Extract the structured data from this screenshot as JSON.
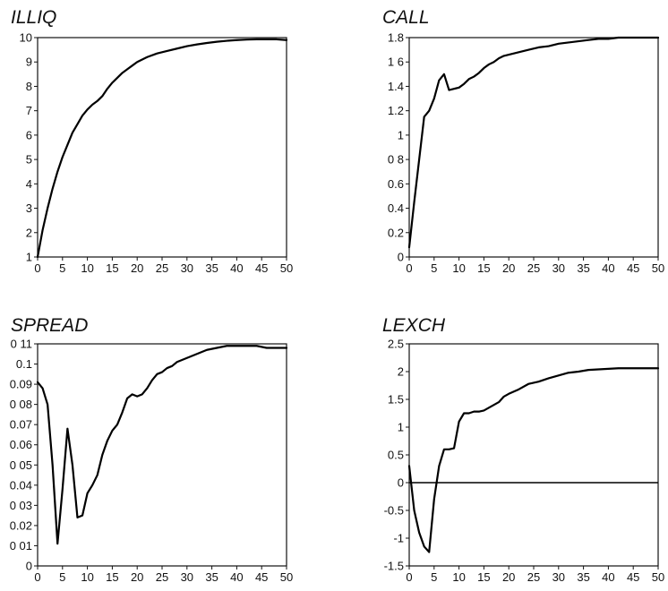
{
  "chart_data": [
    {
      "type": "line",
      "title": "ILLIQ",
      "xlabel": "",
      "ylabel": "",
      "xlim": [
        0,
        50
      ],
      "ylim": [
        1,
        10
      ],
      "x_ticks": [
        0,
        5,
        10,
        15,
        20,
        25,
        30,
        35,
        40,
        45,
        50
      ],
      "x_tick_labels": [
        "0",
        "5",
        "10",
        "15",
        "20",
        "25",
        "30",
        "35",
        "40",
        "45",
        "50"
      ],
      "y_ticks": [
        1,
        2,
        3,
        4,
        5,
        6,
        7,
        8,
        9,
        10
      ],
      "y_tick_labels": [
        "1",
        "2",
        "3",
        "4",
        "5",
        "6",
        "7",
        "8",
        "9",
        "10"
      ],
      "grid": false,
      "series": [
        {
          "x": [
            0,
            1,
            2,
            3,
            4,
            5,
            6,
            7,
            8,
            9,
            10,
            11,
            12,
            13,
            14,
            15,
            16,
            17,
            18,
            19,
            20,
            22,
            24,
            26,
            28,
            30,
            32,
            34,
            36,
            38,
            40,
            42,
            44,
            46,
            48,
            50
          ],
          "y": [
            1.0,
            2.1,
            3.0,
            3.8,
            4.5,
            5.1,
            5.6,
            6.1,
            6.45,
            6.8,
            7.05,
            7.25,
            7.4,
            7.6,
            7.9,
            8.15,
            8.35,
            8.55,
            8.7,
            8.85,
            9.0,
            9.2,
            9.35,
            9.45,
            9.55,
            9.65,
            9.72,
            9.78,
            9.83,
            9.87,
            9.9,
            9.92,
            9.93,
            9.93,
            9.93,
            9.9
          ]
        }
      ]
    },
    {
      "type": "line",
      "title": "CALL",
      "xlabel": "",
      "ylabel": "",
      "xlim": [
        0,
        50
      ],
      "ylim": [
        0,
        1.8
      ],
      "x_ticks": [
        0,
        5,
        10,
        15,
        20,
        25,
        30,
        35,
        40,
        45,
        50
      ],
      "x_tick_labels": [
        "0",
        "5",
        "10",
        "15",
        "20",
        "25",
        "30",
        "35",
        "40",
        "45",
        "50"
      ],
      "y_ticks": [
        0,
        0.2,
        0.4,
        0.6,
        0.8,
        1.0,
        1.2,
        1.4,
        1.6,
        1.8
      ],
      "y_tick_labels": [
        "0",
        "0.2",
        "0.4",
        "0.6",
        "0 8",
        "1",
        "1.2",
        "1.4",
        "1 6",
        "1.8"
      ],
      "grid": false,
      "series": [
        {
          "x": [
            0,
            1,
            2,
            3,
            4,
            5,
            6,
            7,
            8,
            9,
            10,
            11,
            12,
            13,
            14,
            15,
            16,
            17,
            18,
            19,
            20,
            22,
            24,
            26,
            28,
            30,
            32,
            34,
            36,
            38,
            40,
            42,
            44,
            46,
            48,
            50
          ],
          "y": [
            0.08,
            0.45,
            0.8,
            1.15,
            1.2,
            1.3,
            1.45,
            1.5,
            1.37,
            1.38,
            1.39,
            1.42,
            1.46,
            1.48,
            1.51,
            1.55,
            1.58,
            1.6,
            1.63,
            1.65,
            1.66,
            1.68,
            1.7,
            1.72,
            1.73,
            1.75,
            1.76,
            1.77,
            1.78,
            1.79,
            1.79,
            1.8,
            1.8,
            1.8,
            1.8,
            1.8
          ]
        }
      ]
    },
    {
      "type": "line",
      "title": "SPREAD",
      "xlabel": "",
      "ylabel": "",
      "xlim": [
        0,
        50
      ],
      "ylim": [
        0,
        0.11
      ],
      "x_ticks": [
        0,
        5,
        10,
        15,
        20,
        25,
        30,
        35,
        40,
        45,
        50
      ],
      "x_tick_labels": [
        "0",
        "5",
        "10",
        "15",
        "20",
        "25",
        "30",
        "35",
        "40",
        "45",
        "50"
      ],
      "y_ticks": [
        0,
        0.01,
        0.02,
        0.03,
        0.04,
        0.05,
        0.06,
        0.07,
        0.08,
        0.09,
        0.1,
        0.11
      ],
      "y_tick_labels": [
        "0",
        "0 01",
        "0.02",
        "0 03",
        "0.04",
        "0 05",
        "0.06",
        "0.07",
        "0 08",
        "0.09",
        "0.1",
        "0 11"
      ],
      "grid": false,
      "series": [
        {
          "x": [
            0,
            1,
            2,
            3,
            4,
            5,
            6,
            7,
            8,
            9,
            10,
            11,
            12,
            13,
            14,
            15,
            16,
            17,
            18,
            19,
            20,
            21,
            22,
            23,
            24,
            25,
            26,
            27,
            28,
            30,
            32,
            34,
            36,
            38,
            40,
            42,
            44,
            46,
            48,
            50
          ],
          "y": [
            0.091,
            0.088,
            0.08,
            0.05,
            0.011,
            0.038,
            0.068,
            0.05,
            0.024,
            0.025,
            0.036,
            0.04,
            0.045,
            0.055,
            0.062,
            0.067,
            0.07,
            0.076,
            0.083,
            0.085,
            0.084,
            0.085,
            0.088,
            0.092,
            0.095,
            0.096,
            0.098,
            0.099,
            0.101,
            0.103,
            0.105,
            0.107,
            0.108,
            0.109,
            0.109,
            0.109,
            0.109,
            0.108,
            0.108,
            0.108
          ]
        }
      ]
    },
    {
      "type": "line",
      "title": "LEXCH",
      "xlabel": "",
      "ylabel": "",
      "xlim": [
        0,
        50
      ],
      "ylim": [
        -1.5,
        2.5
      ],
      "x_ticks": [
        0,
        5,
        10,
        15,
        20,
        25,
        30,
        35,
        40,
        45,
        50
      ],
      "x_tick_labels": [
        "0",
        "5",
        "10",
        "15",
        "20",
        "25",
        "30",
        "35",
        "40",
        "45",
        "50"
      ],
      "y_ticks": [
        -1.5,
        -1,
        -0.5,
        0,
        0.5,
        1,
        1.5,
        2,
        2.5
      ],
      "y_tick_labels": [
        "-1.5",
        "-1",
        "-0.5",
        "0",
        "0.5",
        "1",
        "1.5",
        "2",
        "2.5"
      ],
      "reference_line_y": 0,
      "grid": false,
      "series": [
        {
          "x": [
            0,
            1,
            2,
            3,
            4,
            5,
            6,
            7,
            8,
            9,
            10,
            11,
            12,
            13,
            14,
            15,
            16,
            17,
            18,
            19,
            20,
            22,
            24,
            26,
            28,
            30,
            32,
            34,
            36,
            38,
            40,
            42,
            44,
            46,
            48,
            50
          ],
          "y": [
            0.3,
            -0.5,
            -0.9,
            -1.15,
            -1.25,
            -0.3,
            0.3,
            0.6,
            0.6,
            0.62,
            1.1,
            1.25,
            1.25,
            1.28,
            1.28,
            1.3,
            1.35,
            1.4,
            1.45,
            1.55,
            1.6,
            1.68,
            1.78,
            1.82,
            1.88,
            1.93,
            1.98,
            2.0,
            2.03,
            2.04,
            2.05,
            2.06,
            2.06,
            2.06,
            2.06,
            2.06
          ]
        }
      ]
    }
  ]
}
